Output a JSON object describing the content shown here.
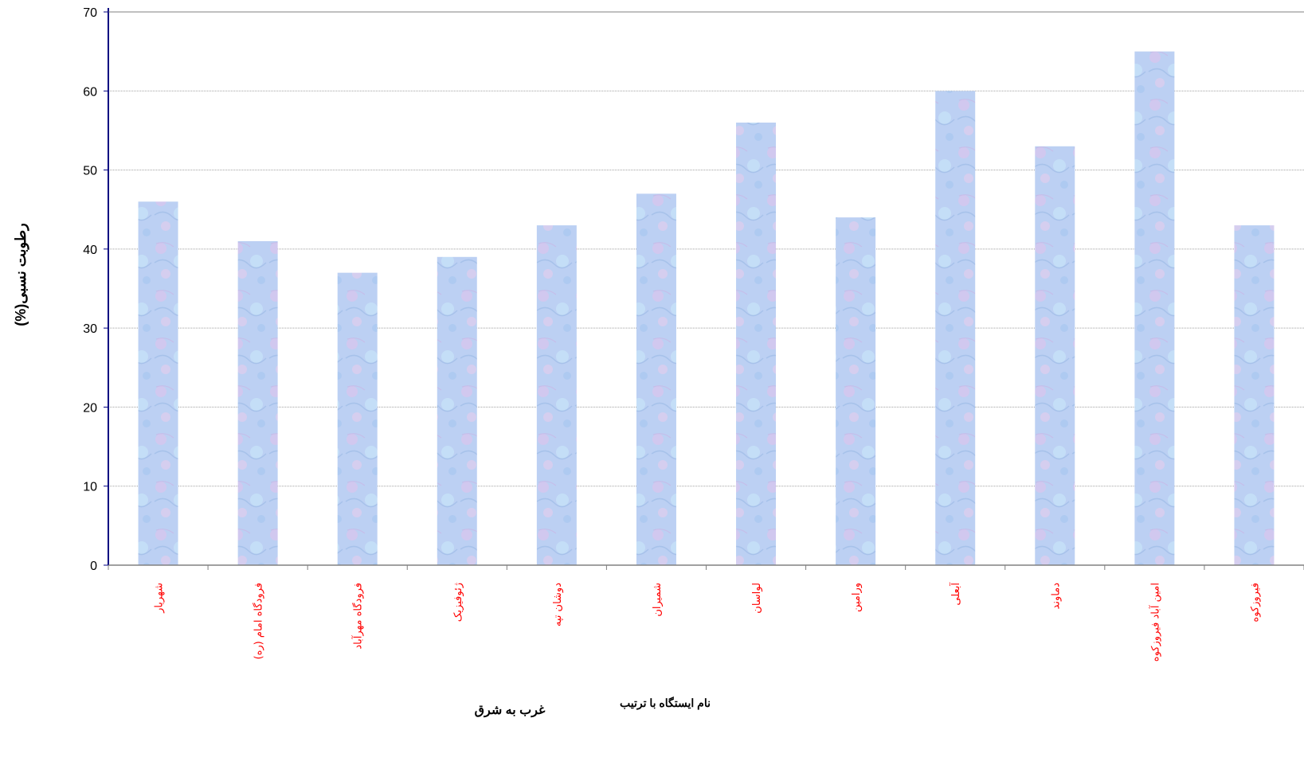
{
  "chart_data": {
    "type": "bar",
    "title": "",
    "ylabel": "رطوبت نسبی(%)",
    "xlabel_line1": "نام ایستگاه با ترتیب",
    "xlabel_line2": "غرب به شرق",
    "categories": [
      "شهریار",
      "فرودگاه امام (ره)",
      "فرودگاه مهرآباد",
      "ژئوفیزیک",
      "دوشان تپه",
      "شمیران",
      "لواسان",
      "ورامین",
      "آبعلی",
      "دماوند",
      "امین آباد فیروزکوه",
      "فیروزکوه"
    ],
    "values": [
      46,
      41,
      37,
      39,
      43,
      47,
      56,
      44,
      60,
      53,
      65,
      43
    ],
    "ylim": [
      0,
      70
    ],
    "yticks": [
      0,
      10,
      20,
      30,
      40,
      50,
      60,
      70
    ],
    "grid": true,
    "colors": {
      "bar_fill": "#b8cdf2",
      "bar_texture": "#d9c8ef",
      "axis": "#000080",
      "grid": "#a0a0a0",
      "category_label": "#ff0000",
      "title": "#ff0000"
    }
  }
}
